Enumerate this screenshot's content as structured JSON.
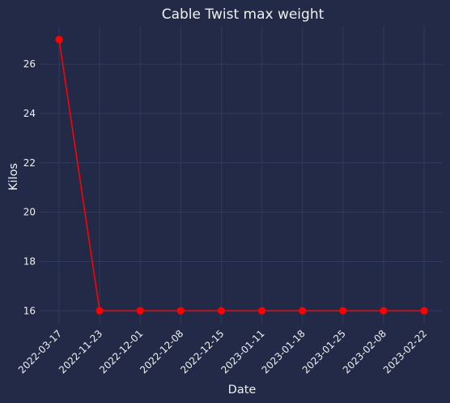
{
  "chart_data": {
    "type": "line",
    "title": "Cable Twist max weight",
    "xlabel": "Date",
    "ylabel": "Kilos",
    "categories": [
      "2022-03-17",
      "2022-11-23",
      "2022-12-01",
      "2022-12-08",
      "2022-12-15",
      "2023-01-11",
      "2023-01-18",
      "2023-01-25",
      "2023-02-08",
      "2023-02-22"
    ],
    "series": [
      {
        "values": [
          27,
          16,
          16,
          16,
          16,
          16,
          16,
          16,
          16,
          16
        ],
        "color": "#ff0000",
        "marker": "circle"
      }
    ],
    "ylim": [
      15.45,
      27.55
    ],
    "yticks": [
      16,
      18,
      20,
      22,
      24,
      26
    ],
    "grid": true,
    "background": "#222a48",
    "grid_color": "#2f3a61",
    "text_color": "#f0f0f0"
  }
}
